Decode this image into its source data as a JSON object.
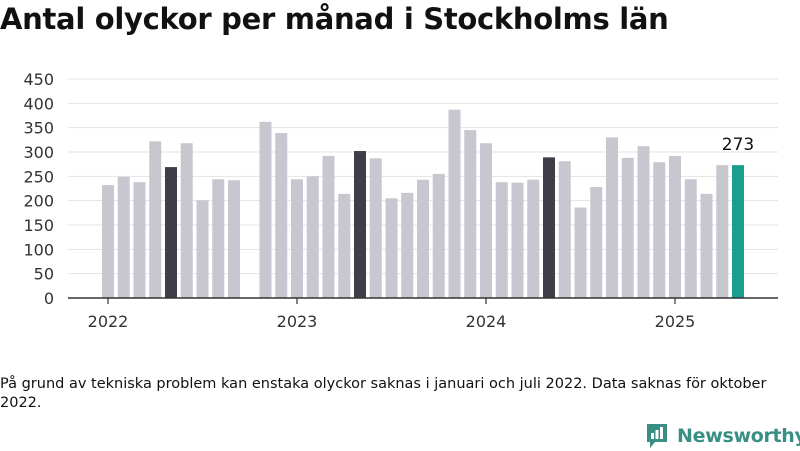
{
  "chart_data": {
    "type": "bar",
    "title": "Antal olyckor per månad i Stockholms län",
    "xlabel": "",
    "ylabel": "",
    "ylim": [
      0,
      450
    ],
    "yticks": [
      0,
      50,
      100,
      150,
      200,
      250,
      300,
      350,
      400,
      450
    ],
    "year_labels": [
      "2022",
      "2023",
      "2024",
      "2025"
    ],
    "grid": true,
    "months": [
      "2022-01",
      "2022-02",
      "2022-03",
      "2022-04",
      "2022-05",
      "2022-06",
      "2022-07",
      "2022-08",
      "2022-09",
      "2022-10",
      "2022-11",
      "2022-12",
      "2023-01",
      "2023-02",
      "2023-03",
      "2023-04",
      "2023-05",
      "2023-06",
      "2023-07",
      "2023-08",
      "2023-09",
      "2023-10",
      "2023-11",
      "2023-12",
      "2024-01",
      "2024-02",
      "2024-03",
      "2024-04",
      "2024-05",
      "2024-06",
      "2024-07",
      "2024-08",
      "2024-09",
      "2024-10",
      "2024-11",
      "2024-12",
      "2025-01",
      "2025-02",
      "2025-03",
      "2025-04",
      "2025-05"
    ],
    "values": [
      232,
      249,
      238,
      322,
      269,
      318,
      201,
      244,
      242,
      null,
      362,
      339,
      244,
      250,
      292,
      214,
      302,
      287,
      205,
      216,
      243,
      255,
      387,
      345,
      318,
      238,
      237,
      243,
      289,
      281,
      186,
      228,
      330,
      288,
      312,
      279,
      292,
      244,
      214,
      273,
      273
    ],
    "highlight": {
      "month": "2025-05",
      "value": 273,
      "label": "273",
      "color": "#1a9e8f"
    },
    "emphasized_months": [
      "2022-05",
      "2023-05",
      "2024-05"
    ],
    "colors": {
      "default": "#c8c7d0",
      "emphasis": "#3e3d48",
      "highlight": "#1a9e8f"
    }
  },
  "footnote": "På grund av tekniska problem kan enstaka olyckor saknas i januari och juli 2022. Data saknas för oktober 2022.",
  "brand": {
    "name": "Newsworthy",
    "icon": "newsworthy-logo-icon",
    "color": "#3a8f85"
  }
}
